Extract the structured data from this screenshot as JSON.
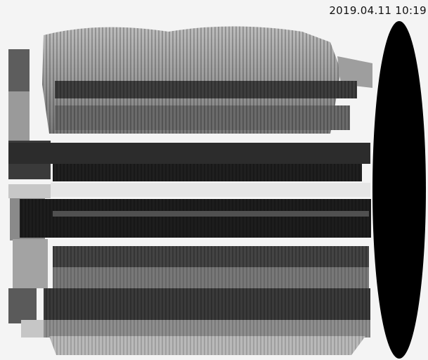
{
  "image": {
    "timestamp": "2019.04.11 10:19",
    "subject": "grayscale x-ray scan of horizontally stacked ribbed cylindrical layers with a dark elliptical end cap on the right",
    "colors": {
      "background": "#f4f4f4",
      "light_band": "#8f8f8f",
      "mid_band": "#5a5a5a",
      "dark_band": "#262626",
      "end_cap": "#000000",
      "timestamp_text": "#111111"
    }
  }
}
